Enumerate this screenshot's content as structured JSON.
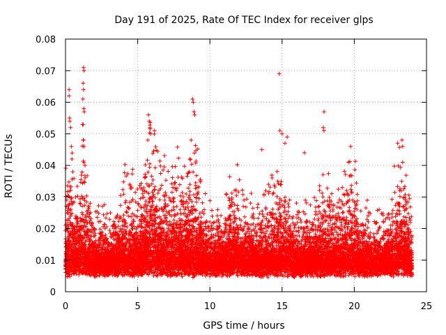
{
  "chart_data": {
    "type": "scatter",
    "title": "Day 191 of 2025, Rate Of TEC Index for receiver glps",
    "xlabel": "GPS time / hours",
    "ylabel": "ROTI / TECUs",
    "xlim": [
      0,
      25
    ],
    "ylim": [
      0,
      0.08
    ],
    "grid": true,
    "marker": "plus",
    "color": "#ff0000",
    "x_ticks": [
      "0",
      "5",
      "10",
      "15",
      "20",
      "25"
    ],
    "x_tick_values": [
      0,
      5,
      10,
      15,
      20,
      25
    ],
    "y_ticks": [
      "0",
      "0.01",
      "0.02",
      "0.03",
      "0.04",
      "0.05",
      "0.06",
      "0.07",
      "0.08"
    ],
    "y_tick_values": [
      0,
      0.01,
      0.02,
      0.03,
      0.04,
      0.05,
      0.06,
      0.07,
      0.08
    ],
    "series": [
      {
        "name": "ROTI",
        "note": "Dense scatter of ~11,000 points, 0–24 h; core band mostly 0.004–0.02 TECU/s. Notable outliers listed here.",
        "outliers": [
          {
            "x": 0.25,
            "y": 0.064
          },
          {
            "x": 0.25,
            "y": 0.062
          },
          {
            "x": 0.28,
            "y": 0.055
          },
          {
            "x": 0.3,
            "y": 0.054
          },
          {
            "x": 0.35,
            "y": 0.052
          },
          {
            "x": 0.4,
            "y": 0.046
          },
          {
            "x": 0.45,
            "y": 0.042
          },
          {
            "x": 0.5,
            "y": 0.038
          },
          {
            "x": 1.25,
            "y": 0.071
          },
          {
            "x": 1.28,
            "y": 0.07
          },
          {
            "x": 1.22,
            "y": 0.066
          },
          {
            "x": 1.25,
            "y": 0.064
          },
          {
            "x": 1.2,
            "y": 0.061
          },
          {
            "x": 1.27,
            "y": 0.058
          },
          {
            "x": 1.3,
            "y": 0.057
          },
          {
            "x": 1.22,
            "y": 0.053
          },
          {
            "x": 1.25,
            "y": 0.048
          },
          {
            "x": 1.28,
            "y": 0.046
          },
          {
            "x": 1.35,
            "y": 0.04
          },
          {
            "x": 5.75,
            "y": 0.056
          },
          {
            "x": 5.8,
            "y": 0.054
          },
          {
            "x": 5.85,
            "y": 0.052
          },
          {
            "x": 5.9,
            "y": 0.05
          },
          {
            "x": 5.7,
            "y": 0.048
          },
          {
            "x": 8.8,
            "y": 0.061
          },
          {
            "x": 8.85,
            "y": 0.06
          },
          {
            "x": 8.9,
            "y": 0.057
          },
          {
            "x": 8.95,
            "y": 0.056
          },
          {
            "x": 8.7,
            "y": 0.048
          },
          {
            "x": 14.8,
            "y": 0.069
          },
          {
            "x": 14.85,
            "y": 0.051
          },
          {
            "x": 15.0,
            "y": 0.05
          },
          {
            "x": 15.2,
            "y": 0.047
          },
          {
            "x": 15.35,
            "y": 0.049
          },
          {
            "x": 13.6,
            "y": 0.045
          },
          {
            "x": 16.55,
            "y": 0.044
          },
          {
            "x": 17.9,
            "y": 0.057
          },
          {
            "x": 17.85,
            "y": 0.052
          },
          {
            "x": 17.9,
            "y": 0.051
          },
          {
            "x": 19.75,
            "y": 0.046
          },
          {
            "x": 19.6,
            "y": 0.041
          },
          {
            "x": 23.0,
            "y": 0.047
          },
          {
            "x": 23.3,
            "y": 0.048
          },
          {
            "x": 23.35,
            "y": 0.046
          },
          {
            "x": 23.35,
            "y": 0.041
          }
        ]
      }
    ]
  }
}
